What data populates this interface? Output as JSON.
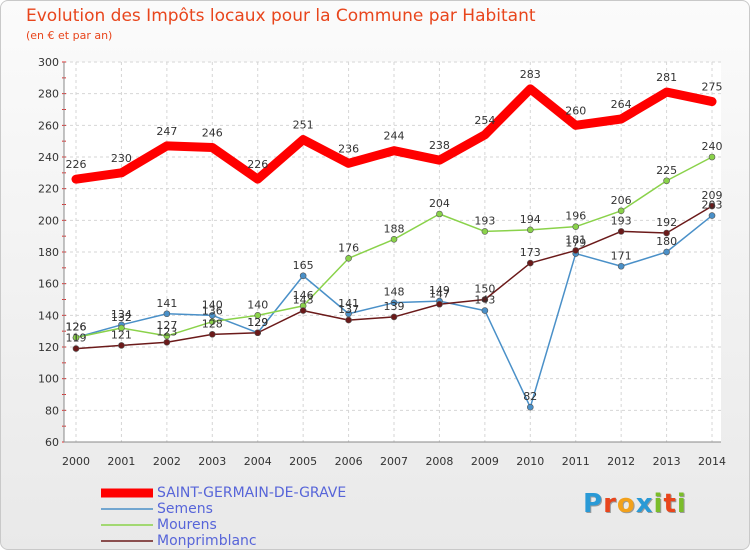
{
  "header": {
    "title": "Evolution des Impôts locaux pour la Commune par Habitant",
    "subtitle": "(en € et par an)"
  },
  "logo": {
    "text": "Proxiti",
    "colors": [
      "#2a9ad6",
      "#e8451c",
      "#f2a11c",
      "#2a9ad6",
      "#7bbd2a",
      "#e8451c",
      "#7bbd2a"
    ]
  },
  "chart_data": {
    "type": "line",
    "title": "Evolution des Impôts locaux pour la Commune par Habitant",
    "ylabel": "(en € et par an)",
    "xlabel": "",
    "categories": [
      "2000",
      "2001",
      "2002",
      "2003",
      "2004",
      "2005",
      "2006",
      "2007",
      "2008",
      "2009",
      "2010",
      "2011",
      "2012",
      "2013",
      "2014"
    ],
    "ylim": [
      60,
      300
    ],
    "yticks": [
      60,
      80,
      100,
      120,
      140,
      160,
      180,
      200,
      220,
      240,
      260,
      280,
      300
    ],
    "grid": true,
    "legend_position": "bottom-left",
    "series": [
      {
        "name": "SAINT-GERMAIN-DE-GRAVE",
        "color": "#ff0000",
        "thick": true,
        "values": [
          226,
          230,
          247,
          246,
          226,
          251,
          236,
          244,
          238,
          254,
          283,
          260,
          264,
          281,
          275
        ]
      },
      {
        "name": "Semens",
        "color": "#4a90c8",
        "thick": false,
        "values": [
          126,
          134,
          141,
          140,
          129,
          165,
          141,
          148,
          149,
          143,
          82,
          179,
          171,
          180,
          203
        ]
      },
      {
        "name": "Mourens",
        "color": "#8ad24a",
        "thick": false,
        "values": [
          126,
          132,
          127,
          136,
          140,
          146,
          176,
          188,
          204,
          193,
          194,
          196,
          206,
          225,
          240
        ]
      },
      {
        "name": "Monprimblanc",
        "color": "#6b1a1a",
        "thick": false,
        "values": [
          119,
          121,
          123,
          128,
          129,
          143,
          137,
          139,
          147,
          150,
          173,
          181,
          193,
          192,
          209
        ]
      }
    ]
  }
}
